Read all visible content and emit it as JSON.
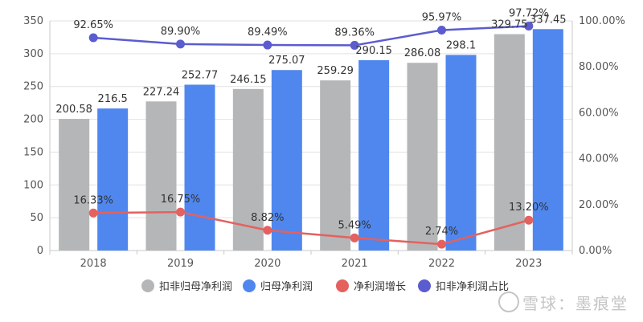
{
  "chart_data": {
    "type": "bar",
    "categories": [
      "2018",
      "2019",
      "2020",
      "2021",
      "2022",
      "2023"
    ],
    "series": [
      {
        "name": "扣非归母净利润",
        "kind": "bar",
        "axis": "left",
        "color": "#b4b6b8",
        "values": [
          200.58,
          227.24,
          246.15,
          259.29,
          286.08,
          329.75
        ],
        "labels": [
          "200.58",
          "227.24",
          "246.15",
          "259.29",
          "286.08",
          "329.75"
        ]
      },
      {
        "name": "归母净利润",
        "kind": "bar",
        "axis": "left",
        "color": "#4f87ef",
        "values": [
          216.5,
          252.77,
          275.07,
          290.15,
          298.1,
          337.45
        ],
        "labels": [
          "216.5",
          "252.77",
          "275.07",
          "290.15",
          "298.1",
          "337.45"
        ]
      },
      {
        "name": "净利润增长",
        "kind": "line",
        "axis": "right",
        "color": "#e4615e",
        "values": [
          16.33,
          16.75,
          8.82,
          5.49,
          2.74,
          13.2
        ],
        "labels": [
          "16.33%",
          "16.75%",
          "8.82%",
          "5.49%",
          "2.74%",
          "13.20%"
        ]
      },
      {
        "name": "扣非净利润占比",
        "kind": "line",
        "axis": "right",
        "color": "#5b5ccf",
        "values": [
          92.65,
          89.9,
          89.49,
          89.36,
          95.97,
          97.72
        ],
        "labels": [
          "92.65%",
          "89.90%",
          "89.49%",
          "89.36%",
          "95.97%",
          "97.72%"
        ]
      }
    ],
    "y_left": {
      "ylim": [
        0,
        350
      ],
      "ticks": [
        "0",
        "50",
        "100",
        "150",
        "200",
        "250",
        "300",
        "350"
      ]
    },
    "y_right": {
      "ylim": [
        0,
        100
      ],
      "ticks": [
        "0.00%",
        "20.00%",
        "40.00%",
        "60.00%",
        "80.00%",
        "100.00%"
      ]
    },
    "legend_position": "bottom",
    "grid": true
  },
  "watermark": {
    "text": "雪球：墨痕堂"
  },
  "colors": {
    "grid": "#e2e2e2",
    "axis": "#c8c8c8"
  }
}
